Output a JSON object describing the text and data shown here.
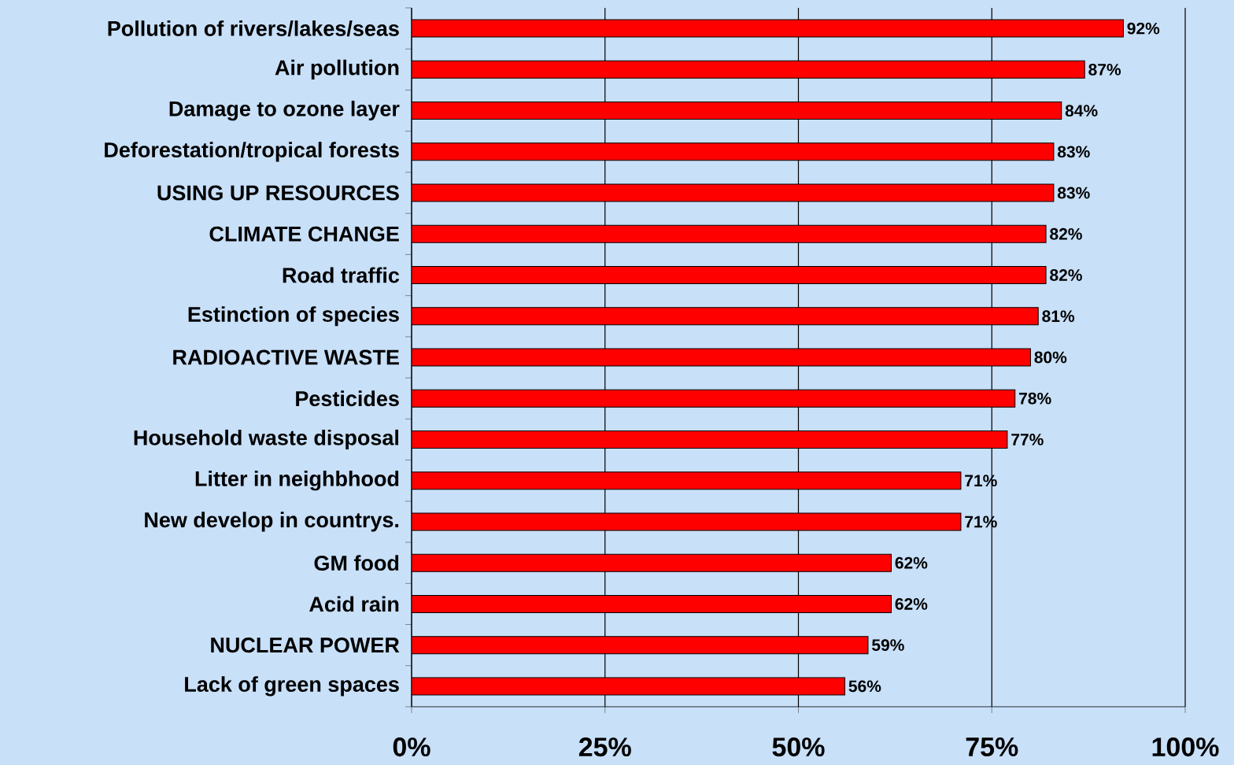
{
  "chart_data": {
    "type": "bar",
    "orientation": "horizontal",
    "categories": [
      "Pollution of rivers/lakes/seas",
      "Air pollution",
      "Damage to ozone layer",
      "Deforestation/tropical forests",
      "USING UP RESOURCES",
      "CLIMATE CHANGE",
      "Road traffic",
      "Estinction of species",
      "RADIOACTIVE WASTE",
      "Pesticides",
      "Household waste disposal",
      "Litter in neighbhood",
      "New develop in countrys.",
      "GM food",
      "Acid rain",
      "NUCLEAR POWER",
      "Lack of green spaces"
    ],
    "values": [
      92,
      87,
      84,
      83,
      83,
      82,
      82,
      81,
      80,
      78,
      77,
      71,
      71,
      62,
      62,
      59,
      56
    ],
    "value_labels": [
      "92%",
      "87%",
      "84%",
      "83%",
      "83%",
      "82%",
      "82%",
      "81%",
      "80%",
      "78%",
      "77%",
      "71%",
      "71%",
      "62%",
      "62%",
      "59%",
      "56%"
    ],
    "color": "#ff0000",
    "xlim": [
      0,
      100
    ],
    "xticks": [
      {
        "value": 0,
        "label": "0%"
      },
      {
        "value": 25,
        "label": "25%"
      },
      {
        "value": 50,
        "label": "50%"
      },
      {
        "value": 75,
        "label": "75%"
      },
      {
        "value": 100,
        "label": "100%"
      }
    ],
    "grid": "x"
  }
}
